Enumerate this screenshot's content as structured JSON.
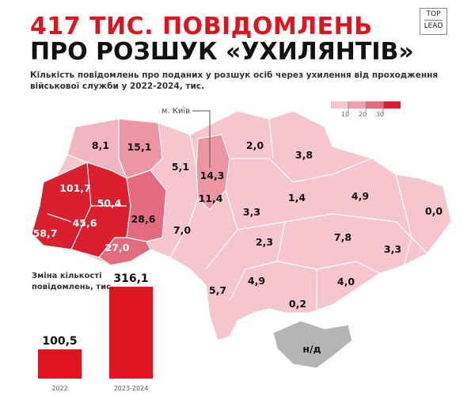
{
  "header": {
    "title_line1": "417 ТИС. ПОВІДОМЛЕНЬ",
    "title_line2": "ПРО РОЗШУК «УХИЛЯНТІВ»",
    "subtitle": "Кількість повідомлень про поданих у розшук осіб через ухилення від проходження військової служби у 2022-2024, тис.",
    "logo": "TOP LEAD",
    "logo_top": "TOP",
    "logo_bottom": "LEAD"
  },
  "legend": {
    "ticks": [
      "10",
      "20",
      "30"
    ],
    "colors": [
      "#f5c6ce",
      "#eea0ad",
      "#e46b7e",
      "#dc1f2f"
    ]
  },
  "map": {
    "kyiv_callout": "м. Київ",
    "no_data_color": "#b5b5b5",
    "regions": [
      {
        "value": "8,1"
      },
      {
        "value": "15,1"
      },
      {
        "value": "101,7"
      },
      {
        "value": "50,4"
      },
      {
        "value": "28,6"
      },
      {
        "value": "45,6"
      },
      {
        "value": "58,7"
      },
      {
        "value": "27,0"
      },
      {
        "value": "5,1"
      },
      {
        "value": "14,3"
      },
      {
        "value": "11,4"
      },
      {
        "value": "2,0"
      },
      {
        "value": "3,8"
      },
      {
        "value": "7,0"
      },
      {
        "value": "3,3"
      },
      {
        "value": "1,4"
      },
      {
        "value": "4,9"
      },
      {
        "value": "0,0"
      },
      {
        "value": "2,3"
      },
      {
        "value": "7,8"
      },
      {
        "value": "3,3"
      },
      {
        "value": "5,7"
      },
      {
        "value": "4,9"
      },
      {
        "value": "4,0"
      },
      {
        "value": "0,2"
      },
      {
        "value": "н/д"
      }
    ]
  },
  "chart_data": {
    "type": "bar",
    "title": "Зміна кількості повідомлень, тис.",
    "categories": [
      "2022",
      "2023-2024"
    ],
    "values": [
      100.5,
      316.1
    ],
    "value_labels": [
      "100,5",
      "316,1"
    ],
    "color": "#e0141e"
  }
}
